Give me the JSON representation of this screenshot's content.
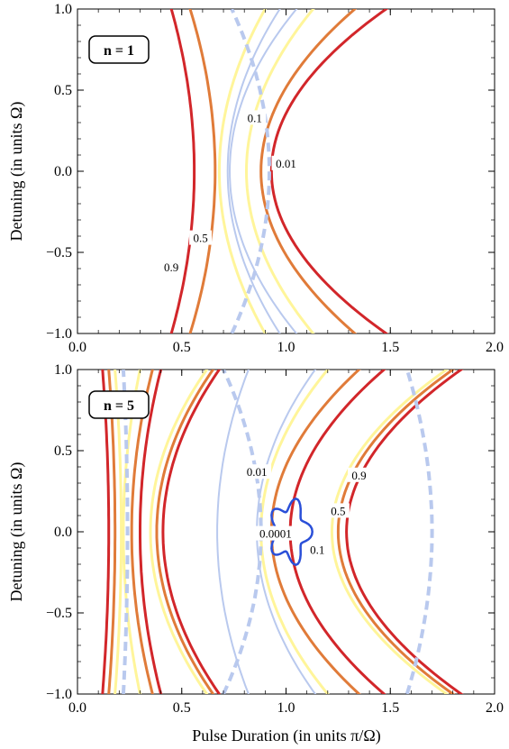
{
  "chart_data": [
    {
      "type": "contour",
      "panel_label": "n = 1",
      "xlabel": "",
      "ylabel": "Detuning (in units Ω)",
      "xlim": [
        0.0,
        2.0
      ],
      "ylim": [
        -1.0,
        1.0
      ],
      "x_ticks": [
        "0.0",
        "0.5",
        "1.0",
        "1.5",
        "2.0"
      ],
      "y_ticks": [
        "−1.0",
        "−0.5",
        "0.0",
        "0.5",
        "1.0"
      ],
      "contours": [
        {
          "level": "0.9",
          "color": "#d2262a",
          "curves": [
            {
              "y0x": 0.45,
              "y1x": 0.45,
              "k": 0.11
            },
            {
              "y0x": 1.48,
              "y1x": 1.48,
              "k": -0.55
            }
          ]
        },
        {
          "level": "0.5",
          "color": "#e07b39",
          "curves": [
            {
              "y0x": 0.54,
              "y1x": 0.54,
              "k": 0.12
            },
            {
              "y0x": 1.33,
              "y1x": 1.33,
              "k": -0.45
            }
          ]
        },
        {
          "level": "0.1",
          "color": "#fff59a",
          "curves": [
            {
              "y0x": 0.9,
              "y1x": 0.9,
              "k": -0.22
            },
            {
              "y0x": 1.13,
              "y1x": 1.13,
              "k": -0.32
            }
          ]
        },
        {
          "level": "0.01",
          "color": "#b9c9ee",
          "curves": [
            {
              "y0x": 0.97,
              "y1x": 0.97,
              "k": -0.25
            },
            {
              "y0x": 1.05,
              "y1x": 1.05,
              "k": -0.32
            }
          ]
        }
      ],
      "contour_labels": [
        {
          "text": "0.9",
          "x": 0.45,
          "y": -0.6
        },
        {
          "text": "0.5",
          "x": 0.59,
          "y": -0.42
        },
        {
          "text": "0.1",
          "x": 0.85,
          "y": 0.32
        },
        {
          "text": "0.01",
          "x": 1.0,
          "y": 0.04
        }
      ]
    },
    {
      "type": "contour",
      "panel_label": "n = 5",
      "xlabel": "Pulse Duration (in units π/Ω)",
      "ylabel": "Detuning (in units Ω)",
      "xlim": [
        0.0,
        2.0
      ],
      "ylim": [
        -1.0,
        1.0
      ],
      "x_ticks": [
        "0.0",
        "0.5",
        "1.0",
        "1.5",
        "2.0"
      ],
      "y_ticks": [
        "−1.0",
        "−0.5",
        "0.0",
        "0.5",
        "1.0"
      ],
      "contours": [
        {
          "level": "0.9",
          "color": "#d2262a",
          "curves": [
            {
              "y0x": 0.12,
              "y1x": 0.12,
              "k": 0.03
            },
            {
              "y0x": 0.4,
              "y1x": 0.4,
              "k": -0.1
            },
            {
              "y0x": 0.68,
              "y1x": 0.68,
              "k": -0.27
            },
            {
              "y0x": 1.47,
              "y1x": 1.47,
              "k": -0.45
            },
            {
              "y0x": 1.84,
              "y1x": 1.84,
              "k": -0.55
            }
          ]
        },
        {
          "level": "0.5",
          "color": "#e07b39",
          "curves": [
            {
              "y0x": 0.15,
              "y1x": 0.15,
              "k": 0.03
            },
            {
              "y0x": 0.36,
              "y1x": 0.36,
              "k": -0.1
            },
            {
              "y0x": 0.65,
              "y1x": 0.65,
              "k": -0.27
            },
            {
              "y0x": 1.35,
              "y1x": 1.35,
              "k": -0.42
            },
            {
              "y0x": 1.8,
              "y1x": 1.8,
              "k": -0.55
            }
          ]
        },
        {
          "level": "0.1",
          "color": "#fff59a",
          "curves": [
            {
              "y0x": 0.18,
              "y1x": 0.18,
              "k": 0.03
            },
            {
              "y0x": 0.3,
              "y1x": 0.3,
              "k": -0.08
            },
            {
              "y0x": 0.62,
              "y1x": 0.62,
              "k": -0.27
            },
            {
              "y0x": 1.2,
              "y1x": 1.2,
              "k": -0.32
            },
            {
              "y0x": 1.77,
              "y1x": 1.77,
              "k": -0.55
            }
          ]
        },
        {
          "level": "0.01",
          "color": "#b9c9ee",
          "curves": [
            {
              "y0x": 0.82,
              "y1x": 0.82,
              "k": -0.15
            },
            {
              "y0x": 1.14,
              "y1x": 1.14,
              "k": -0.28
            }
          ]
        }
      ],
      "contour_labels": [
        {
          "text": "0.9",
          "x": 1.35,
          "y": 0.34
        },
        {
          "text": "0.5",
          "x": 1.25,
          "y": 0.12
        },
        {
          "text": "0.1",
          "x": 1.15,
          "y": -0.12
        },
        {
          "text": "0.01",
          "x": 0.86,
          "y": 0.36
        },
        {
          "text": "0.0001",
          "x": 0.95,
          "y": -0.02
        }
      ]
    }
  ]
}
